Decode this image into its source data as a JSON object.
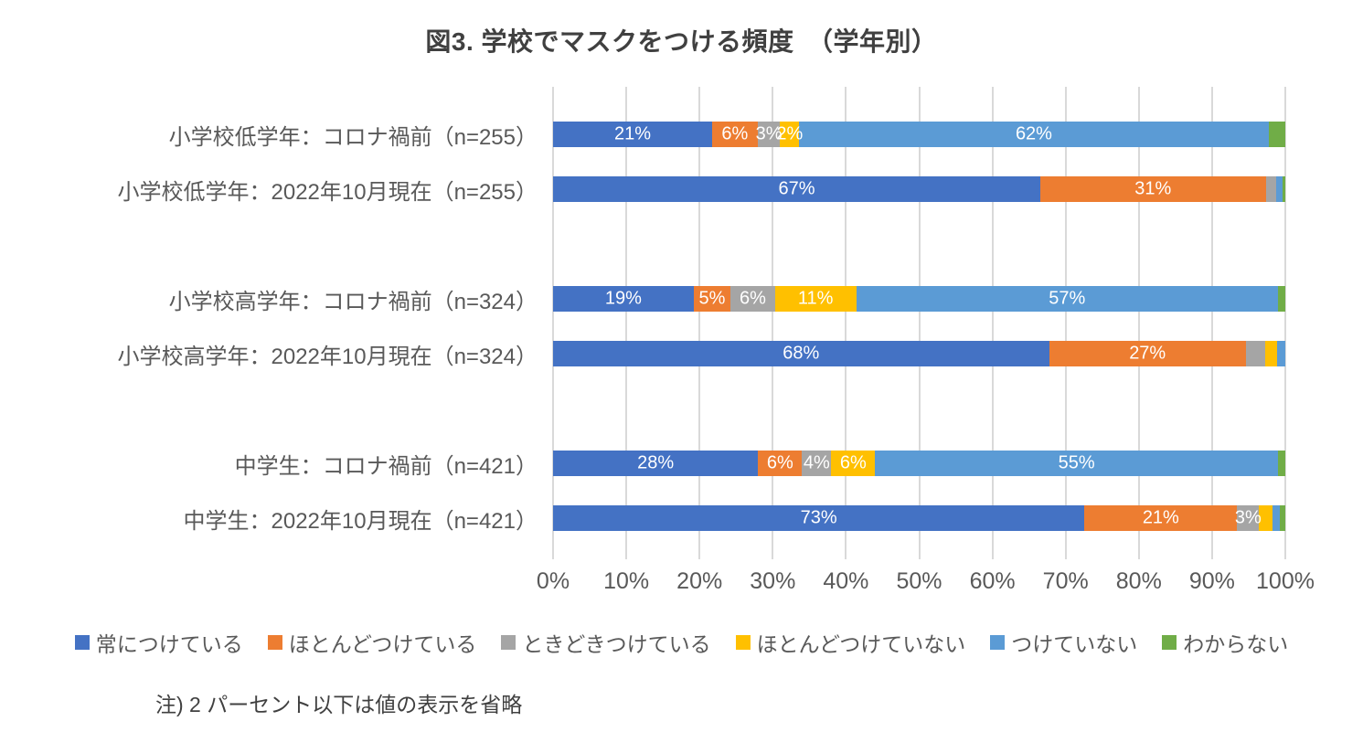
{
  "title": "図3. 学校でマスクをつける頻度　（学年別）",
  "note": "注) 2 パーセント以下は値の表示を省略",
  "colors": {
    "background": "#ffffff",
    "gridline": "#d9d9d9",
    "title_text": "#404040",
    "axis_text": "#595959",
    "category_text": "#595959",
    "value_label_text": "#ffffff"
  },
  "chart_data": {
    "type": "bar",
    "orientation": "horizontal",
    "stacked": true,
    "title": "図3. 学校でマスクをつける頻度　（学年別）",
    "xlabel": "",
    "ylabel": "",
    "xlim": [
      0,
      100
    ],
    "x_ticks": [
      "0%",
      "10%",
      "20%",
      "30%",
      "40%",
      "50%",
      "60%",
      "70%",
      "80%",
      "90%",
      "100%"
    ],
    "gridlines": "vertical-major",
    "legend_position": "bottom",
    "note": "注) 2 パーセント以下は値の表示を省略",
    "categories": [
      "小学校低学年：コロナ禍前（n=255）",
      "小学校低学年：2022年10月現在（n=255）",
      "小学校高学年：コロナ禍前（n=324）",
      "小学校高学年：2022年10月現在（n=324）",
      "中学生：コロナ禍前（n=421）",
      "中学生：2022年10月現在（n=421）"
    ],
    "group_breaks_after": [
      1,
      3
    ],
    "series": [
      {
        "name": "常につけている",
        "color": "#4472c4",
        "values": [
          21,
          67,
          19,
          68,
          28,
          73
        ],
        "labels": [
          "21%",
          "67%",
          "19%",
          "68%",
          "28%",
          "73%"
        ]
      },
      {
        "name": "ほとんどつけている",
        "color": "#ed7d31",
        "values": [
          6,
          31,
          5,
          27,
          6,
          21
        ],
        "labels": [
          "6%",
          "31%",
          "5%",
          "27%",
          "6%",
          "21%"
        ]
      },
      {
        "name": "ときどきつけている",
        "color": "#a5a5a5",
        "values": [
          3,
          1.4,
          6,
          2.7,
          4,
          3
        ],
        "labels": [
          "3%",
          "",
          "6%",
          "",
          "4%",
          "3%"
        ]
      },
      {
        "name": "ほとんどつけていない",
        "color": "#ffc000",
        "values": [
          2.5,
          0,
          11,
          1.6,
          6,
          1.9
        ],
        "labels": [
          "2%",
          "",
          "11%",
          "",
          "6%",
          ""
        ]
      },
      {
        "name": "つけていない",
        "color": "#5b9bd5",
        "values": [
          62,
          0.9,
          57,
          1.1,
          55,
          0.9
        ],
        "labels": [
          "62%",
          "",
          "57%",
          "",
          "55%",
          ""
        ]
      },
      {
        "name": "わからない",
        "color": "#70ad47",
        "values": [
          2.2,
          0.4,
          1,
          0,
          1,
          0.8
        ],
        "labels": [
          "",
          "",
          "",
          "",
          "",
          ""
        ]
      }
    ]
  }
}
